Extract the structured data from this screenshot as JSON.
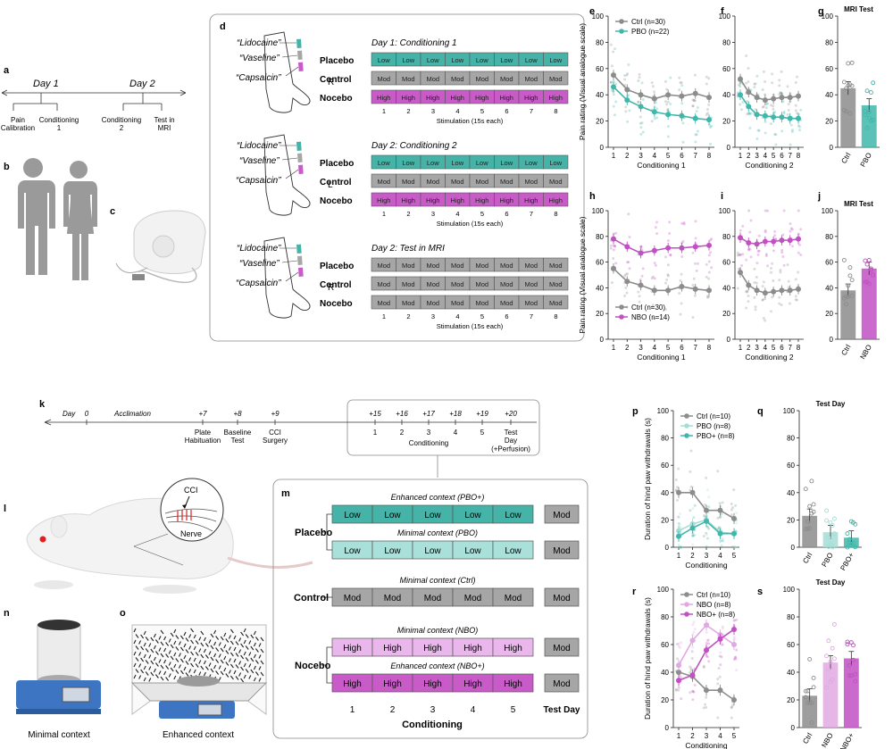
{
  "colors": {
    "ctrl": "#8c8c8c",
    "pbo": "#3fb7aa",
    "pbo_light": "#a6ddd6",
    "nbo": "#c150c3",
    "nbo_light": "#e0a9e2",
    "low": "#46b3a8",
    "mod": "#a6a6a6",
    "high": "#c85bc8",
    "low_light": "#a9e0d9",
    "high_light": "#eab7ec"
  },
  "labels": {
    "a": "a",
    "b": "b",
    "c": "c",
    "d": "d",
    "e": "e",
    "f": "f",
    "g": "g",
    "h": "h",
    "i": "i",
    "j": "j",
    "k": "k",
    "l": "l",
    "m": "m",
    "n": "n",
    "o": "o",
    "p": "p",
    "q": "q",
    "r": "r",
    "s": "s"
  },
  "panel_a": {
    "day1": "Day 1",
    "day2": "Day 2",
    "items": [
      "Pain\nCalibration",
      "Conditioning\n1",
      "Conditioning\n2",
      "Test in\nMRI"
    ]
  },
  "panel_d": {
    "creams": [
      "“Lidocaine”",
      "“Vaseline”",
      "“Capsaicin”"
    ],
    "groups": [
      "Placebo",
      "Control",
      "Nocebo"
    ],
    "blocks": [
      {
        "title": "Day 1: Conditioning 1",
        "arm": "R",
        "rows": [
          "Low",
          "Mod",
          "High"
        ]
      },
      {
        "title": "Day 2: Conditioning 2",
        "arm": "L",
        "rows": [
          "Low",
          "Mod",
          "High"
        ]
      },
      {
        "title": "Day 2: Test in MRI",
        "arm": "R",
        "rows": [
          "Mod",
          "Mod",
          "Mod"
        ]
      }
    ],
    "stim_numbers": [
      "1",
      "2",
      "3",
      "4",
      "5",
      "6",
      "7",
      "8"
    ],
    "stim_label": "Stimulation (15s each)"
  },
  "panel_k": {
    "day_label": "Day",
    "acclimation": "Acclimation",
    "ticks": [
      {
        "day": "0",
        "label": ""
      },
      {
        "day": "+7",
        "label": "Plate\nHabituation"
      },
      {
        "day": "+8",
        "label": "Baseline\nTest"
      },
      {
        "day": "+9",
        "label": "CCI\nSurgery"
      }
    ],
    "cond_days": [
      "+15",
      "+16",
      "+17",
      "+18",
      "+19"
    ],
    "cond_nums": [
      "1",
      "2",
      "3",
      "4",
      "5"
    ],
    "cond_label": "Conditioning",
    "test_day": "+20",
    "test_label": "Test\nDay\n(+Perfusion)"
  },
  "panel_l": {
    "cci": "CCI",
    "nerve": "Nerve"
  },
  "panel_m": {
    "rows": [
      {
        "context": "Enhanced context (PBO+)",
        "cell": "Low",
        "style": "low",
        "test": "Mod"
      },
      {
        "context": "Minimal context (PBO)",
        "cell": "Low",
        "style": "low_light",
        "test": "Mod"
      },
      {
        "context": "Minimal context (Ctrl)",
        "cell": "Mod",
        "style": "mod",
        "test": "Mod"
      },
      {
        "context": "Minimal context (NBO)",
        "cell": "High",
        "style": "high_light",
        "test": "Mod"
      },
      {
        "context": "Enhanced context (NBO+)",
        "cell": "High",
        "style": "high",
        "test": "Mod"
      }
    ],
    "groups": [
      "Placebo",
      "Control",
      "Nocebo"
    ],
    "day_numbers": [
      "1",
      "2",
      "3",
      "4",
      "5"
    ],
    "test_day": "Test Day",
    "xlabel": "Conditioning"
  },
  "panel_n": {
    "caption": "Minimal context"
  },
  "panel_o": {
    "caption": "Enhanced context"
  },
  "chart_data": [
    {
      "id": "e",
      "type": "line",
      "x": [
        1,
        2,
        3,
        4,
        5,
        6,
        7,
        8
      ],
      "xlabel": "Conditioning 1",
      "ylabel": "Pain rating (Visual analogue scale)",
      "ylim": [
        0,
        100
      ],
      "series": [
        {
          "name": "Ctrl (n=30)",
          "color": "ctrl",
          "values": [
            55,
            44,
            40,
            37,
            40,
            39,
            41,
            38
          ]
        },
        {
          "name": "PBO (n=22)",
          "color": "pbo",
          "values": [
            46,
            36,
            31,
            27,
            25,
            24,
            22,
            21
          ]
        }
      ]
    },
    {
      "id": "f",
      "type": "line",
      "x": [
        1,
        2,
        3,
        4,
        5,
        6,
        7,
        8
      ],
      "xlabel": "Conditioning 2",
      "ylabel": "",
      "ylim": [
        0,
        100
      ],
      "series": [
        {
          "name": "Ctrl",
          "color": "ctrl",
          "values": [
            52,
            42,
            38,
            36,
            37,
            38,
            38,
            39
          ]
        },
        {
          "name": "PBO",
          "color": "pbo",
          "values": [
            40,
            31,
            25,
            24,
            23,
            23,
            22,
            22
          ]
        }
      ]
    },
    {
      "id": "g",
      "type": "bar",
      "title": "MRI Test",
      "categories": [
        "Ctrl",
        "PBO"
      ],
      "values": [
        45,
        32
      ],
      "colors": [
        "ctrl",
        "pbo"
      ],
      "ylim": [
        0,
        100
      ]
    },
    {
      "id": "h",
      "type": "line",
      "x": [
        1,
        2,
        3,
        4,
        5,
        6,
        7,
        8
      ],
      "xlabel": "Conditioning 1",
      "ylabel": "Pain rating (Visual analogue scale)",
      "ylim": [
        0,
        100
      ],
      "series": [
        {
          "name": "Ctrl (n=30)",
          "color": "ctrl",
          "values": [
            55,
            45,
            42,
            38,
            38,
            41,
            39,
            38
          ]
        },
        {
          "name": "NBO (n=14)",
          "color": "nbo",
          "values": [
            78,
            72,
            67,
            69,
            71,
            71,
            72,
            73
          ]
        }
      ]
    },
    {
      "id": "i",
      "type": "line",
      "x": [
        1,
        2,
        3,
        4,
        5,
        6,
        7,
        8
      ],
      "xlabel": "Conditioning 2",
      "ylabel": "",
      "ylim": [
        0,
        100
      ],
      "series": [
        {
          "name": "Ctrl",
          "color": "ctrl",
          "values": [
            52,
            42,
            38,
            36,
            37,
            38,
            38,
            39
          ]
        },
        {
          "name": "NBO",
          "color": "nbo",
          "values": [
            79,
            75,
            74,
            76,
            76,
            77,
            77,
            78
          ]
        }
      ]
    },
    {
      "id": "j",
      "type": "bar",
      "title": "MRI Test",
      "categories": [
        "Ctrl",
        "NBO"
      ],
      "values": [
        38,
        55
      ],
      "colors": [
        "ctrl",
        "nbo"
      ],
      "ylim": [
        0,
        100
      ]
    },
    {
      "id": "p",
      "type": "line",
      "x": [
        1,
        2,
        3,
        4,
        5
      ],
      "xlabel": "Conditioning",
      "ylabel": "Duration of hind paw withdrawals (s)",
      "ylim": [
        0,
        100
      ],
      "series": [
        {
          "name": "Ctrl (n=10)",
          "color": "ctrl",
          "values": [
            40,
            40,
            27,
            27,
            21
          ]
        },
        {
          "name": "PBO (n=8)",
          "color": "pbo_light",
          "values": [
            12,
            17,
            20,
            11,
            10
          ]
        },
        {
          "name": "PBO+ (n=8)",
          "color": "pbo",
          "values": [
            8,
            14,
            19,
            10,
            10
          ]
        }
      ]
    },
    {
      "id": "q",
      "type": "bar",
      "title": "Test Day",
      "categories": [
        "Ctrl",
        "PBO",
        "PBO+"
      ],
      "values": [
        23,
        11,
        7
      ],
      "colors": [
        "ctrl",
        "pbo_light",
        "pbo"
      ],
      "ylim": [
        0,
        100
      ]
    },
    {
      "id": "r",
      "type": "line",
      "x": [
        1,
        2,
        3,
        4,
        5
      ],
      "xlabel": "Conditioning",
      "ylabel": "Duration of hind paw withdrawals (s)",
      "ylim": [
        0,
        100
      ],
      "series": [
        {
          "name": "Ctrl (n=10)",
          "color": "ctrl",
          "values": [
            40,
            37,
            27,
            27,
            20
          ]
        },
        {
          "name": "NBO (n=8)",
          "color": "nbo_light",
          "values": [
            45,
            63,
            74,
            67,
            60
          ]
        },
        {
          "name": "NBO+ (n=8)",
          "color": "nbo",
          "values": [
            34,
            38,
            56,
            64,
            71
          ]
        }
      ]
    },
    {
      "id": "s",
      "type": "bar",
      "title": "Test Day",
      "categories": [
        "Ctrl",
        "NBO",
        "NBO+"
      ],
      "values": [
        23,
        47,
        50
      ],
      "colors": [
        "ctrl",
        "nbo_light",
        "nbo"
      ],
      "ylim": [
        0,
        100
      ]
    }
  ]
}
